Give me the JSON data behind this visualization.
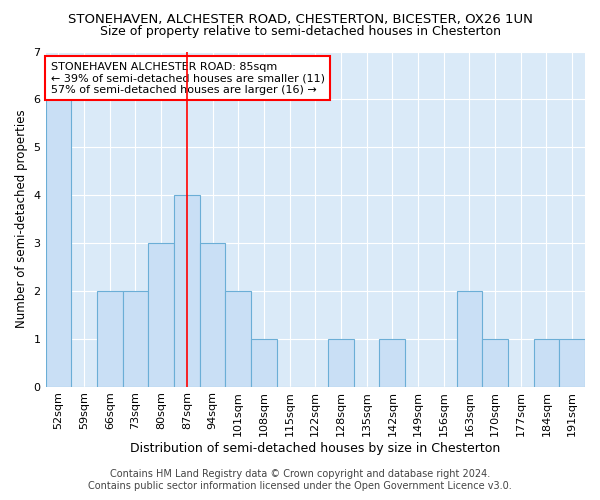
{
  "title1": "STONEHAVEN, ALCHESTER ROAD, CHESTERTON, BICESTER, OX26 1UN",
  "title2": "Size of property relative to semi-detached houses in Chesterton",
  "xlabel": "Distribution of semi-detached houses by size in Chesterton",
  "ylabel": "Number of semi-detached properties",
  "footer1": "Contains HM Land Registry data © Crown copyright and database right 2024.",
  "footer2": "Contains public sector information licensed under the Open Government Licence v3.0.",
  "annotation_line1": "STONEHAVEN ALCHESTER ROAD: 85sqm",
  "annotation_line2": "← 39% of semi-detached houses are smaller (11)",
  "annotation_line3": "57% of semi-detached houses are larger (16) →",
  "categories": [
    "52sqm",
    "59sqm",
    "66sqm",
    "73sqm",
    "80sqm",
    "87sqm",
    "94sqm",
    "101sqm",
    "108sqm",
    "115sqm",
    "122sqm",
    "128sqm",
    "135sqm",
    "142sqm",
    "149sqm",
    "156sqm",
    "163sqm",
    "170sqm",
    "177sqm",
    "184sqm",
    "191sqm"
  ],
  "values": [
    6,
    0,
    2,
    2,
    3,
    4,
    3,
    2,
    1,
    0,
    0,
    1,
    0,
    1,
    0,
    0,
    2,
    1,
    0,
    1,
    1
  ],
  "bar_color": "#c9dff5",
  "bar_edgecolor": "#6baed6",
  "redline_index": 5,
  "ylim": [
    0,
    7
  ],
  "yticks": [
    0,
    1,
    2,
    3,
    4,
    5,
    6,
    7
  ],
  "fig_bg_color": "#ffffff",
  "plot_bg_color": "#daeaf8",
  "grid_color": "#ffffff",
  "title1_fontsize": 9.5,
  "title2_fontsize": 9,
  "annotation_fontsize": 8,
  "tick_fontsize": 8,
  "xlabel_fontsize": 9,
  "ylabel_fontsize": 8.5,
  "footer_fontsize": 7
}
